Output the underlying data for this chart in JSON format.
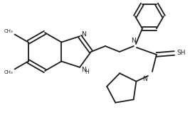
{
  "background_color": "#ffffff",
  "line_color": "#1a1a1a",
  "line_width": 1.3,
  "font_size": 6.5,
  "fig_width": 2.67,
  "fig_height": 1.65,
  "dpi": 100,
  "xlim": [
    0,
    267
  ],
  "ylim": [
    0,
    165
  ]
}
